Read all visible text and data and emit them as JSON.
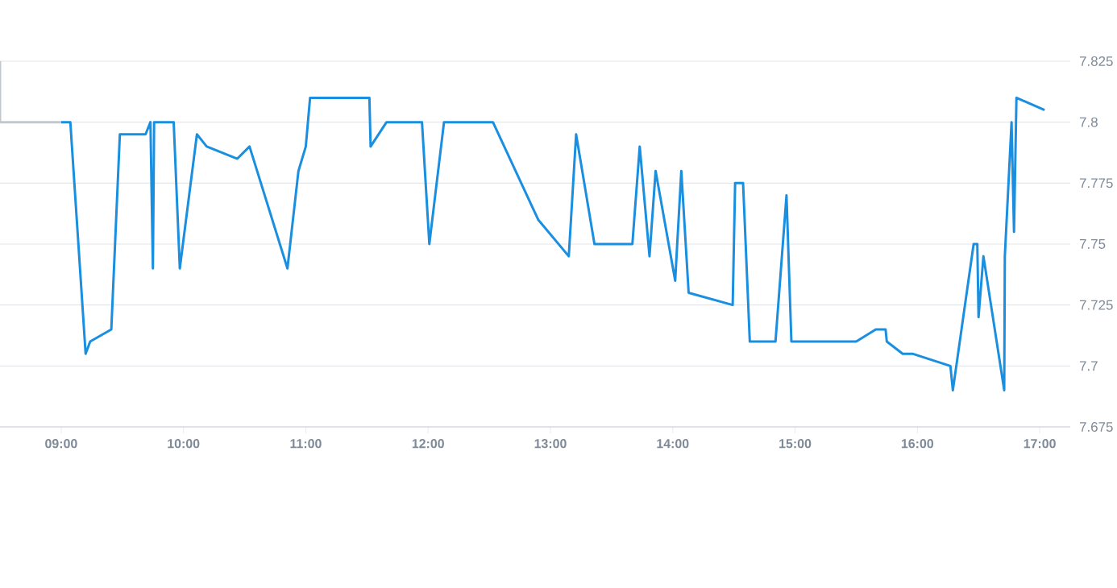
{
  "chart_data": {
    "type": "line",
    "xlim": [
      8.5,
      17.25
    ],
    "ylim": [
      7.675,
      7.825
    ],
    "xticks": [
      {
        "value": 9,
        "label": "09:00"
      },
      {
        "value": 10,
        "label": "10:00"
      },
      {
        "value": 11,
        "label": "11:00"
      },
      {
        "value": 12,
        "label": "12:00"
      },
      {
        "value": 13,
        "label": "13:00"
      },
      {
        "value": 14,
        "label": "14:00"
      },
      {
        "value": 15,
        "label": "15:00"
      },
      {
        "value": 16,
        "label": "16:00"
      },
      {
        "value": 17,
        "label": "17:00"
      }
    ],
    "yticks": [
      7.675,
      7.7,
      7.725,
      7.75,
      7.775,
      7.8,
      7.825
    ],
    "grid": "y",
    "series": [
      {
        "color": "#c3c8cd",
        "x": [
          8.5,
          8.5,
          9.0
        ],
        "values": [
          7.825,
          7.8,
          7.8
        ]
      },
      {
        "color": "#1a8fe0",
        "x": [
          9.0,
          9.075,
          9.2,
          9.237,
          9.41,
          9.48,
          9.69,
          9.73,
          9.75,
          9.76,
          9.92,
          9.97,
          10.11,
          10.19,
          10.44,
          10.54,
          10.85,
          10.94,
          11.0,
          11.035,
          11.52,
          11.53,
          11.66,
          11.95,
          12.01,
          12.13,
          12.53,
          12.9,
          13.15,
          13.21,
          13.36,
          13.67,
          13.73,
          13.81,
          13.86,
          14.02,
          14.07,
          14.13,
          14.49,
          14.51,
          14.575,
          14.63,
          14.84,
          14.93,
          14.97,
          15.5,
          15.66,
          15.74,
          15.75,
          15.88,
          15.96,
          16.27,
          16.29,
          16.46,
          16.49,
          16.5,
          16.54,
          16.71,
          16.715,
          16.77,
          16.79,
          16.81,
          17.04
        ],
        "values": [
          7.8,
          7.8,
          7.705,
          7.71,
          7.715,
          7.795,
          7.795,
          7.8,
          7.74,
          7.8,
          7.8,
          7.74,
          7.795,
          7.79,
          7.785,
          7.79,
          7.74,
          7.78,
          7.79,
          7.81,
          7.81,
          7.79,
          7.8,
          7.8,
          7.75,
          7.8,
          7.8,
          7.76,
          7.745,
          7.795,
          7.75,
          7.75,
          7.79,
          7.745,
          7.78,
          7.735,
          7.78,
          7.73,
          7.725,
          7.775,
          7.775,
          7.71,
          7.71,
          7.77,
          7.71,
          7.71,
          7.715,
          7.715,
          7.71,
          7.705,
          7.705,
          7.7,
          7.69,
          7.75,
          7.75,
          7.72,
          7.745,
          7.69,
          7.745,
          7.8,
          7.755,
          7.81,
          7.805
        ]
      }
    ]
  }
}
